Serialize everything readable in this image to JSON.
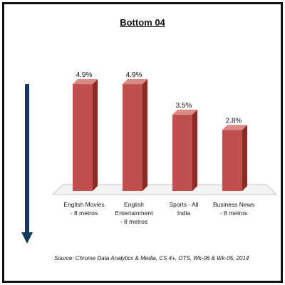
{
  "chart_data": {
    "type": "bar",
    "title": "Bottom 04",
    "categories": [
      "English Movies - 8 metros",
      "English Entertainment - 8 metros",
      "Sports - All India",
      "Business News - 8 metros"
    ],
    "category_lines": [
      [
        "English Movies",
        "- 8 metros"
      ],
      [
        "English",
        "Entertainment",
        "- 8 metros"
      ],
      [
        "Sports - All",
        "India"
      ],
      [
        "Business News",
        "- 8 metros"
      ]
    ],
    "values": [
      4.9,
      4.9,
      3.5,
      2.8
    ],
    "data_labels": [
      "4.9%",
      "4.9%",
      "3.5%",
      "2.8%"
    ],
    "ylim": [
      0,
      5.6
    ],
    "grid": false,
    "bar_color": "#c0504d",
    "bar_side_color": "#8c2a26",
    "bar_top_color": "#d98a87",
    "arrow_color": "#17375e",
    "source": "Source: Chrome Data Analytics & Media, CS 4+, OTS, Wk-06 & Wk-05, 2014"
  }
}
